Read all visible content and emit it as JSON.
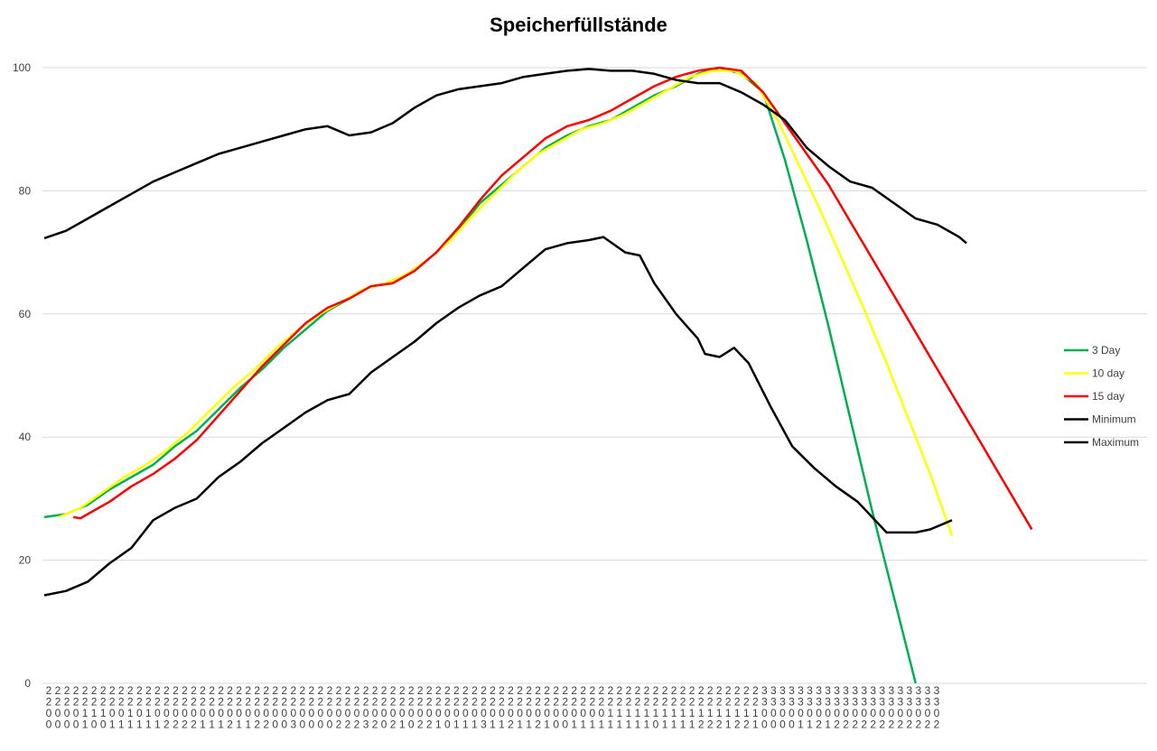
{
  "chart_data": {
    "type": "line",
    "title": "Speicherfüllstände",
    "xlabel": "",
    "ylabel": "",
    "ylim": [
      0,
      100
    ],
    "yticks": [
      0,
      20,
      40,
      60,
      80,
      100
    ],
    "grid": "horizontal",
    "legend_position": "right",
    "x_tick_columns": [
      "2200",
      "2200",
      "2200",
      "2200",
      "2211",
      "2210",
      "2210",
      "2201",
      "2201",
      "2211",
      "2201",
      "2211",
      "2201",
      "2202",
      "2202",
      "2202",
      "2202",
      "2201",
      "2201",
      "2201",
      "2202",
      "2201",
      "2201",
      "2202",
      "2202",
      "2200",
      "2200",
      "2203",
      "2200",
      "2200",
      "2200",
      "2200",
      "2202",
      "2202",
      "2202",
      "2203",
      "2202",
      "2200",
      "2202",
      "2201",
      "2200",
      "2202",
      "2202",
      "2201",
      "2200",
      "2201",
      "2201",
      "2201",
      "2203",
      "2201",
      "2201",
      "2202",
      "2201",
      "2201",
      "2202",
      "2201",
      "2200",
      "2200",
      "2201",
      "2201",
      "2201",
      "2201",
      "2211",
      "2211",
      "2211",
      "2211",
      "2211",
      "2210",
      "2211",
      "2211",
      "2211",
      "2211",
      "2212",
      "2212",
      "2212",
      "2211",
      "2212",
      "2212",
      "2211",
      "3300",
      "3300",
      "3300",
      "3300",
      "3301",
      "3301",
      "3302",
      "3301",
      "3302",
      "3302",
      "3302",
      "3302",
      "3302",
      "3302",
      "3302",
      "3302",
      "3302",
      "3302",
      "3302",
      "3302"
    ],
    "series": [
      {
        "name": "3 Day",
        "color": "#00b050",
        "values": [
          [
            0,
            27
          ],
          [
            3,
            27.5
          ],
          [
            6,
            29
          ],
          [
            9,
            31.5
          ],
          [
            12,
            33.5
          ],
          [
            15,
            35.5
          ],
          [
            18,
            38.5
          ],
          [
            21,
            41
          ],
          [
            24,
            44.5
          ],
          [
            27,
            48
          ],
          [
            30,
            51
          ],
          [
            33,
            54.5
          ],
          [
            36,
            57.5
          ],
          [
            39,
            60.5
          ],
          [
            42,
            62.5
          ],
          [
            45,
            64.5
          ],
          [
            48,
            65
          ],
          [
            51,
            67
          ],
          [
            54,
            70
          ],
          [
            57,
            73.5
          ],
          [
            60,
            78
          ],
          [
            63,
            81
          ],
          [
            66,
            84
          ],
          [
            69,
            87
          ],
          [
            72,
            89
          ],
          [
            75,
            90.5
          ],
          [
            78,
            91.5
          ],
          [
            81,
            93.5
          ],
          [
            84,
            95.5
          ],
          [
            87,
            97
          ],
          [
            90,
            99
          ],
          [
            93,
            100
          ],
          [
            96,
            99
          ],
          [
            99,
            96
          ],
          [
            102,
            85
          ],
          [
            105,
            72
          ],
          [
            108,
            58
          ],
          [
            111,
            43
          ],
          [
            114,
            28
          ],
          [
            117,
            14
          ],
          [
            120,
            0
          ]
        ]
      },
      {
        "name": "10 day",
        "color": "#ffff00",
        "values": [
          [
            2,
            27
          ],
          [
            5,
            28.5
          ],
          [
            8,
            31
          ],
          [
            11,
            33.5
          ],
          [
            14,
            35.5
          ],
          [
            17,
            38
          ],
          [
            20,
            41
          ],
          [
            23,
            44.5
          ],
          [
            26,
            48
          ],
          [
            29,
            51
          ],
          [
            32,
            54.5
          ],
          [
            35,
            57.5
          ],
          [
            38,
            60
          ],
          [
            41,
            62
          ],
          [
            44,
            64
          ],
          [
            47,
            65
          ],
          [
            50,
            66.5
          ],
          [
            53,
            69
          ],
          [
            56,
            72
          ],
          [
            59,
            76
          ],
          [
            62,
            79.5
          ],
          [
            65,
            83
          ],
          [
            68,
            86
          ],
          [
            71,
            88
          ],
          [
            74,
            90
          ],
          [
            77,
            91
          ],
          [
            80,
            92.5
          ],
          [
            83,
            94.5
          ],
          [
            86,
            96.5
          ],
          [
            89,
            98.5
          ],
          [
            92,
            99.5
          ],
          [
            95,
            99.5
          ],
          [
            98,
            97.5
          ],
          [
            101,
            91.5
          ],
          [
            104,
            84
          ],
          [
            107,
            76.5
          ],
          [
            110,
            68.5
          ],
          [
            113,
            60.5
          ],
          [
            116,
            52
          ],
          [
            119,
            43
          ],
          [
            122,
            34
          ],
          [
            125,
            24
          ]
        ]
      },
      {
        "name": "15 day",
        "color": "#ff0000",
        "values": [
          [
            4,
            27
          ],
          [
            5,
            26.8
          ],
          [
            6,
            27.5
          ],
          [
            9,
            29.5
          ],
          [
            12,
            32
          ],
          [
            15,
            34
          ],
          [
            18,
            36.5
          ],
          [
            21,
            39.5
          ],
          [
            24,
            43.5
          ],
          [
            27,
            47.5
          ],
          [
            30,
            51.5
          ],
          [
            33,
            55
          ],
          [
            36,
            58.5
          ],
          [
            39,
            61
          ],
          [
            42,
            62.5
          ],
          [
            45,
            64.5
          ],
          [
            48,
            65
          ],
          [
            51,
            67
          ],
          [
            54,
            70
          ],
          [
            57,
            74
          ],
          [
            60,
            78.5
          ],
          [
            63,
            82.5
          ],
          [
            66,
            85.5
          ],
          [
            69,
            88.5
          ],
          [
            72,
            90.5
          ],
          [
            75,
            91.5
          ],
          [
            78,
            93
          ],
          [
            81,
            95
          ],
          [
            84,
            97
          ],
          [
            87,
            98.5
          ],
          [
            90,
            99.5
          ],
          [
            93,
            100
          ],
          [
            96,
            99.5
          ],
          [
            99,
            96
          ],
          [
            102,
            91
          ],
          [
            105,
            86
          ],
          [
            108,
            81
          ],
          [
            111,
            75
          ],
          [
            114,
            69
          ],
          [
            117,
            63
          ],
          [
            120,
            57
          ],
          [
            123,
            51
          ],
          [
            126,
            45
          ],
          [
            129,
            39
          ],
          [
            131,
            35
          ],
          [
            133,
            31
          ],
          [
            135,
            27
          ],
          [
            136,
            25
          ]
        ]
      },
      {
        "name": "Minimum",
        "color": "#000000",
        "values": [
          [
            0,
            14.3
          ],
          [
            3,
            15
          ],
          [
            6,
            16.5
          ],
          [
            9,
            19.5
          ],
          [
            12,
            22
          ],
          [
            15,
            26.5
          ],
          [
            18,
            28.5
          ],
          [
            21,
            30
          ],
          [
            24,
            33.5
          ],
          [
            27,
            36
          ],
          [
            30,
            39
          ],
          [
            33,
            41.5
          ],
          [
            36,
            44
          ],
          [
            39,
            46
          ],
          [
            42,
            47
          ],
          [
            45,
            50.5
          ],
          [
            48,
            53
          ],
          [
            51,
            55.5
          ],
          [
            54,
            58.5
          ],
          [
            57,
            61
          ],
          [
            60,
            63
          ],
          [
            63,
            64.5
          ],
          [
            66,
            67.5
          ],
          [
            69,
            70.5
          ],
          [
            72,
            71.5
          ],
          [
            75,
            72
          ],
          [
            77,
            72.5
          ],
          [
            80,
            70
          ],
          [
            82,
            69.5
          ],
          [
            84,
            65
          ],
          [
            87,
            60
          ],
          [
            90,
            56
          ],
          [
            91,
            53.5
          ],
          [
            93,
            53
          ],
          [
            95,
            54.5
          ],
          [
            97,
            52
          ],
          [
            100,
            45
          ],
          [
            103,
            38.5
          ],
          [
            106,
            35
          ],
          [
            109,
            32
          ],
          [
            112,
            29.5
          ],
          [
            114,
            27
          ],
          [
            116,
            24.5
          ],
          [
            118,
            24.5
          ],
          [
            120,
            24.5
          ],
          [
            122,
            25
          ],
          [
            124,
            26
          ],
          [
            125,
            26.5
          ]
        ]
      },
      {
        "name": "Maximum",
        "color": "#000000",
        "values": [
          [
            0,
            72.3
          ],
          [
            3,
            73.5
          ],
          [
            6,
            75.5
          ],
          [
            9,
            77.5
          ],
          [
            12,
            79.5
          ],
          [
            15,
            81.5
          ],
          [
            18,
            83
          ],
          [
            21,
            84.5
          ],
          [
            24,
            86
          ],
          [
            27,
            87
          ],
          [
            30,
            88
          ],
          [
            33,
            89
          ],
          [
            36,
            90
          ],
          [
            39,
            90.5
          ],
          [
            42,
            89
          ],
          [
            45,
            89.5
          ],
          [
            48,
            91
          ],
          [
            51,
            93.5
          ],
          [
            54,
            95.5
          ],
          [
            57,
            96.5
          ],
          [
            60,
            97
          ],
          [
            63,
            97.5
          ],
          [
            66,
            98.5
          ],
          [
            69,
            99
          ],
          [
            72,
            99.5
          ],
          [
            75,
            99.8
          ],
          [
            78,
            99.5
          ],
          [
            81,
            99.5
          ],
          [
            84,
            99
          ],
          [
            87,
            98
          ],
          [
            90,
            97.5
          ],
          [
            93,
            97.5
          ],
          [
            96,
            96
          ],
          [
            99,
            94
          ],
          [
            102,
            91.5
          ],
          [
            105,
            87
          ],
          [
            108,
            84
          ],
          [
            111,
            81.5
          ],
          [
            114,
            80.5
          ],
          [
            117,
            78
          ],
          [
            120,
            75.5
          ],
          [
            123,
            74.5
          ],
          [
            126,
            72.5
          ],
          [
            127,
            71.5
          ]
        ]
      }
    ]
  }
}
